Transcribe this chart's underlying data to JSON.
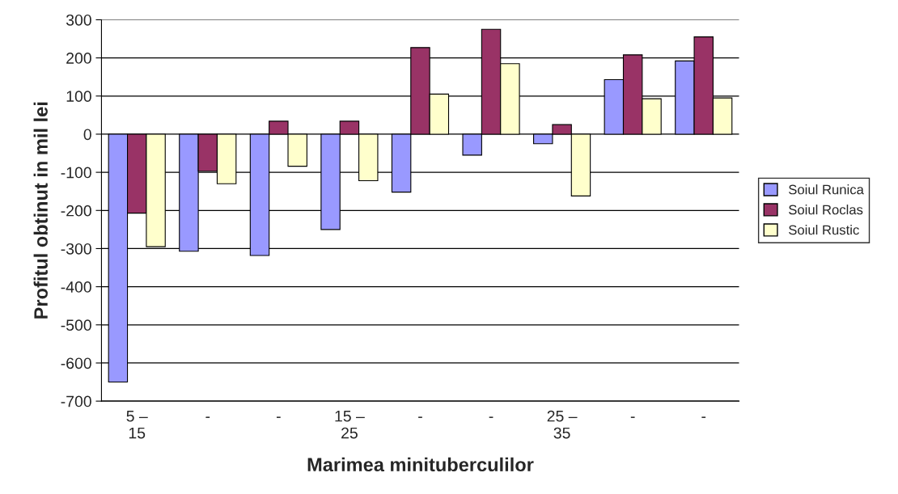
{
  "chart_data": {
    "type": "bar",
    "xlabel": "Marimea minituberculilor",
    "ylabel": "Profitul obtinut in mil lei",
    "categories": [
      "5 –\n15",
      "-",
      "-",
      "15 –\n25",
      "-",
      "-",
      "25 –\n35",
      "-",
      "-"
    ],
    "series": [
      {
        "name": "Soiul Runica",
        "color": "#9999ff",
        "values": [
          -650,
          -307,
          -318,
          -250,
          -152,
          -55,
          -25,
          143,
          192
        ]
      },
      {
        "name": "Soiul Roclas",
        "color": "#993366",
        "values": [
          -207,
          -97,
          34,
          34,
          227,
          275,
          25,
          208,
          255
        ]
      },
      {
        "name": "Soiul Rustic",
        "color": "#ffffcc",
        "values": [
          -295,
          -130,
          -84,
          -122,
          105,
          185,
          -162,
          93,
          95
        ]
      }
    ],
    "ylim": [
      -700,
      300
    ],
    "yticks": [
      -700,
      -600,
      -500,
      -400,
      -300,
      -200,
      -100,
      0,
      100,
      200,
      300
    ],
    "grid": "y",
    "legend": "right"
  }
}
